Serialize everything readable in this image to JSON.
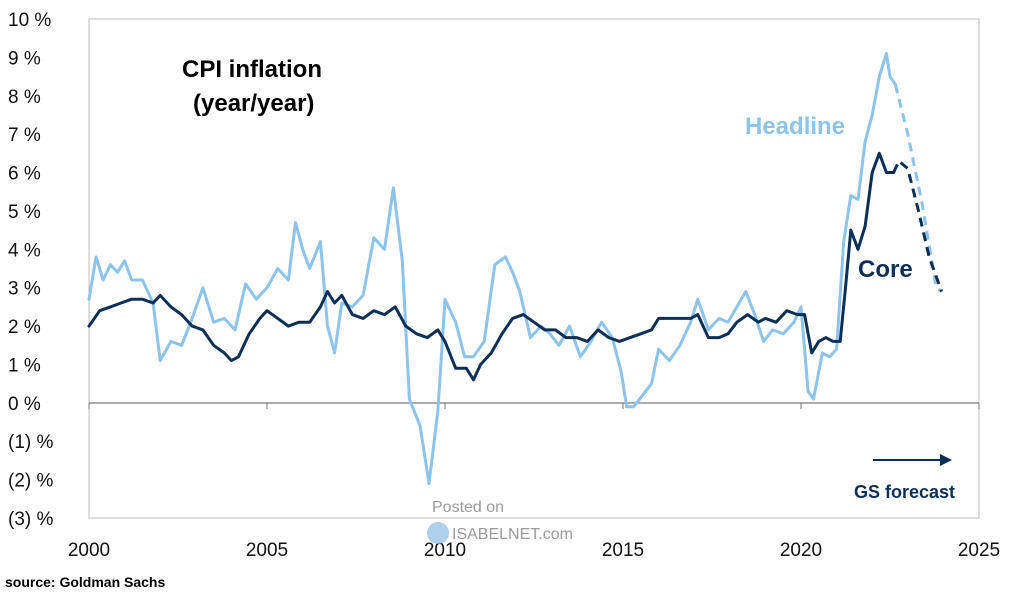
{
  "chart_data": {
    "type": "line",
    "title": "CPI inflation",
    "subtitle": "(year/year)",
    "xlabel": "",
    "ylabel": "",
    "xlim": [
      2000,
      2025
    ],
    "ylim": [
      -3,
      10
    ],
    "x_ticks": [
      2000,
      2005,
      2010,
      2015,
      2020,
      2025
    ],
    "x_tick_labels": [
      "2000",
      "2005",
      "2010",
      "2015",
      "2020",
      "2025"
    ],
    "y_ticks": [
      10,
      9,
      8,
      7,
      6,
      5,
      4,
      3,
      2,
      1,
      0,
      -1,
      -2,
      -3
    ],
    "y_tick_labels": [
      "10 %",
      "9 %",
      "8 %",
      "7 %",
      "6 %",
      "5 %",
      "4 %",
      "3 %",
      "2 %",
      "1 %",
      "0 %",
      "(1) %",
      "(2) %",
      "(3) %"
    ],
    "series": [
      {
        "name": "Headline",
        "color": "#8ec3ea",
        "points": [
          [
            2000.0,
            2.7
          ],
          [
            2000.2,
            3.8
          ],
          [
            2000.4,
            3.2
          ],
          [
            2000.6,
            3.6
          ],
          [
            2000.8,
            3.4
          ],
          [
            2001.0,
            3.7
          ],
          [
            2001.2,
            3.2
          ],
          [
            2001.5,
            3.2
          ],
          [
            2001.8,
            2.6
          ],
          [
            2002.0,
            1.1
          ],
          [
            2002.3,
            1.6
          ],
          [
            2002.6,
            1.5
          ],
          [
            2002.9,
            2.2
          ],
          [
            2003.2,
            3.0
          ],
          [
            2003.5,
            2.1
          ],
          [
            2003.8,
            2.2
          ],
          [
            2004.1,
            1.9
          ],
          [
            2004.4,
            3.1
          ],
          [
            2004.7,
            2.7
          ],
          [
            2005.0,
            3.0
          ],
          [
            2005.3,
            3.5
          ],
          [
            2005.6,
            3.2
          ],
          [
            2005.8,
            4.7
          ],
          [
            2006.0,
            4.0
          ],
          [
            2006.2,
            3.5
          ],
          [
            2006.5,
            4.2
          ],
          [
            2006.7,
            2.0
          ],
          [
            2006.9,
            1.3
          ],
          [
            2007.1,
            2.6
          ],
          [
            2007.4,
            2.5
          ],
          [
            2007.7,
            2.8
          ],
          [
            2008.0,
            4.3
          ],
          [
            2008.3,
            4.0
          ],
          [
            2008.55,
            5.6
          ],
          [
            2008.8,
            3.7
          ],
          [
            2009.0,
            0.1
          ],
          [
            2009.3,
            -0.6
          ],
          [
            2009.55,
            -2.1
          ],
          [
            2009.8,
            -0.2
          ],
          [
            2010.0,
            2.7
          ],
          [
            2010.3,
            2.1
          ],
          [
            2010.55,
            1.2
          ],
          [
            2010.8,
            1.2
          ],
          [
            2011.1,
            1.6
          ],
          [
            2011.4,
            3.6
          ],
          [
            2011.7,
            3.8
          ],
          [
            2011.9,
            3.4
          ],
          [
            2012.1,
            2.9
          ],
          [
            2012.4,
            1.7
          ],
          [
            2012.7,
            2.0
          ],
          [
            2012.95,
            1.8
          ],
          [
            2013.2,
            1.5
          ],
          [
            2013.5,
            2.0
          ],
          [
            2013.8,
            1.2
          ],
          [
            2014.1,
            1.6
          ],
          [
            2014.4,
            2.1
          ],
          [
            2014.7,
            1.7
          ],
          [
            2014.95,
            0.8
          ],
          [
            2015.1,
            -0.1
          ],
          [
            2015.3,
            -0.1
          ],
          [
            2015.55,
            0.2
          ],
          [
            2015.8,
            0.5
          ],
          [
            2016.0,
            1.4
          ],
          [
            2016.3,
            1.1
          ],
          [
            2016.6,
            1.5
          ],
          [
            2016.9,
            2.1
          ],
          [
            2017.1,
            2.7
          ],
          [
            2017.4,
            1.9
          ],
          [
            2017.7,
            2.2
          ],
          [
            2017.95,
            2.1
          ],
          [
            2018.2,
            2.5
          ],
          [
            2018.45,
            2.9
          ],
          [
            2018.7,
            2.3
          ],
          [
            2018.95,
            1.6
          ],
          [
            2019.2,
            1.9
          ],
          [
            2019.5,
            1.8
          ],
          [
            2019.8,
            2.1
          ],
          [
            2020.0,
            2.5
          ],
          [
            2020.2,
            0.3
          ],
          [
            2020.35,
            0.1
          ],
          [
            2020.6,
            1.3
          ],
          [
            2020.8,
            1.2
          ],
          [
            2021.0,
            1.4
          ],
          [
            2021.2,
            4.2
          ],
          [
            2021.4,
            5.4
          ],
          [
            2021.6,
            5.3
          ],
          [
            2021.8,
            6.8
          ],
          [
            2022.0,
            7.5
          ],
          [
            2022.2,
            8.5
          ],
          [
            2022.4,
            9.1
          ],
          [
            2022.5,
            8.5
          ],
          [
            2022.65,
            8.3
          ]
        ]
      },
      {
        "name": "Core",
        "color": "#0d2f55",
        "points": [
          [
            2000.0,
            2.0
          ],
          [
            2000.3,
            2.4
          ],
          [
            2000.6,
            2.5
          ],
          [
            2000.9,
            2.6
          ],
          [
            2001.2,
            2.7
          ],
          [
            2001.5,
            2.7
          ],
          [
            2001.8,
            2.6
          ],
          [
            2002.0,
            2.8
          ],
          [
            2002.3,
            2.5
          ],
          [
            2002.6,
            2.3
          ],
          [
            2002.9,
            2.0
          ],
          [
            2003.2,
            1.9
          ],
          [
            2003.5,
            1.5
          ],
          [
            2003.8,
            1.3
          ],
          [
            2004.0,
            1.1
          ],
          [
            2004.2,
            1.2
          ],
          [
            2004.5,
            1.8
          ],
          [
            2004.8,
            2.2
          ],
          [
            2005.0,
            2.4
          ],
          [
            2005.3,
            2.2
          ],
          [
            2005.6,
            2.0
          ],
          [
            2005.9,
            2.1
          ],
          [
            2006.2,
            2.1
          ],
          [
            2006.5,
            2.5
          ],
          [
            2006.7,
            2.9
          ],
          [
            2006.9,
            2.6
          ],
          [
            2007.1,
            2.8
          ],
          [
            2007.4,
            2.3
          ],
          [
            2007.7,
            2.2
          ],
          [
            2008.0,
            2.4
          ],
          [
            2008.3,
            2.3
          ],
          [
            2008.6,
            2.5
          ],
          [
            2008.9,
            2.0
          ],
          [
            2009.2,
            1.8
          ],
          [
            2009.5,
            1.7
          ],
          [
            2009.8,
            1.9
          ],
          [
            2010.0,
            1.6
          ],
          [
            2010.3,
            0.9
          ],
          [
            2010.6,
            0.9
          ],
          [
            2010.8,
            0.6
          ],
          [
            2011.0,
            1.0
          ],
          [
            2011.3,
            1.3
          ],
          [
            2011.6,
            1.8
          ],
          [
            2011.9,
            2.2
          ],
          [
            2012.2,
            2.3
          ],
          [
            2012.5,
            2.1
          ],
          [
            2012.8,
            1.9
          ],
          [
            2013.1,
            1.9
          ],
          [
            2013.4,
            1.7
          ],
          [
            2013.7,
            1.7
          ],
          [
            2014.0,
            1.6
          ],
          [
            2014.3,
            1.9
          ],
          [
            2014.6,
            1.7
          ],
          [
            2014.9,
            1.6
          ],
          [
            2015.2,
            1.7
          ],
          [
            2015.5,
            1.8
          ],
          [
            2015.8,
            1.9
          ],
          [
            2016.0,
            2.2
          ],
          [
            2016.3,
            2.2
          ],
          [
            2016.6,
            2.2
          ],
          [
            2016.9,
            2.2
          ],
          [
            2017.1,
            2.3
          ],
          [
            2017.4,
            1.7
          ],
          [
            2017.7,
            1.7
          ],
          [
            2017.95,
            1.8
          ],
          [
            2018.2,
            2.1
          ],
          [
            2018.5,
            2.3
          ],
          [
            2018.8,
            2.1
          ],
          [
            2019.0,
            2.2
          ],
          [
            2019.3,
            2.1
          ],
          [
            2019.6,
            2.4
          ],
          [
            2019.9,
            2.3
          ],
          [
            2020.1,
            2.3
          ],
          [
            2020.3,
            1.3
          ],
          [
            2020.5,
            1.6
          ],
          [
            2020.7,
            1.7
          ],
          [
            2020.9,
            1.6
          ],
          [
            2021.1,
            1.6
          ],
          [
            2021.25,
            3.0
          ],
          [
            2021.4,
            4.5
          ],
          [
            2021.6,
            4.0
          ],
          [
            2021.8,
            4.6
          ],
          [
            2022.0,
            6.0
          ],
          [
            2022.2,
            6.5
          ],
          [
            2022.4,
            6.0
          ],
          [
            2022.6,
            6.0
          ]
        ]
      }
    ],
    "forecast": [
      {
        "name": "Headline",
        "points": [
          [
            2022.65,
            8.3
          ],
          [
            2023.0,
            7.0
          ],
          [
            2023.4,
            5.2
          ],
          [
            2023.8,
            3.0
          ],
          [
            2023.95,
            2.9
          ]
        ]
      },
      {
        "name": "Core",
        "points": [
          [
            2022.6,
            6.0
          ],
          [
            2022.75,
            6.3
          ],
          [
            2023.0,
            6.1
          ],
          [
            2023.3,
            5.0
          ],
          [
            2023.6,
            3.8
          ],
          [
            2023.95,
            2.9
          ]
        ]
      }
    ],
    "legend": {
      "headline_label": "Headline",
      "core_label": "Core"
    },
    "annotation": "GS forecast"
  },
  "source": "source: Goldman Sachs",
  "watermark": {
    "line1": "Posted on",
    "line2": "ISABELNET.com"
  }
}
